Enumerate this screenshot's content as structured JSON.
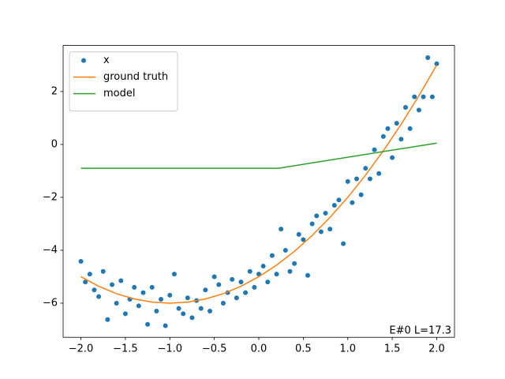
{
  "chart_data": {
    "type": "line",
    "annotation": "E#0 L=17.3",
    "xlim": [
      -2.2,
      2.2
    ],
    "ylim": [
      -7.29,
      3.74
    ],
    "xticks": [
      {
        "value": -2,
        "label": "−2.0"
      },
      {
        "value": -1.5,
        "label": "−1.5"
      },
      {
        "value": -1,
        "label": "−1.0"
      },
      {
        "value": -0.5,
        "label": "−0.5"
      },
      {
        "value": 0,
        "label": "0.0"
      },
      {
        "value": 0.5,
        "label": "0.5"
      },
      {
        "value": 1,
        "label": "1.0"
      },
      {
        "value": 1.5,
        "label": "1.5"
      },
      {
        "value": 2,
        "label": "2.0"
      }
    ],
    "yticks": [
      {
        "value": -6,
        "label": "−6"
      },
      {
        "value": -4,
        "label": "−4"
      },
      {
        "value": -2,
        "label": "−2"
      },
      0,
      2
    ],
    "legend": "upper left",
    "series": [
      {
        "name": "x",
        "type": "scatter",
        "color": "#1f77b4",
        "x": [
          -2.0,
          -1.95,
          -1.9,
          -1.85,
          -1.8,
          -1.75,
          -1.7,
          -1.65,
          -1.6,
          -1.55,
          -1.5,
          -1.45,
          -1.4,
          -1.35,
          -1.3,
          -1.25,
          -1.2,
          -1.15,
          -1.1,
          -1.05,
          -1.0,
          -0.95,
          -0.9,
          -0.85,
          -0.8,
          -0.75,
          -0.7,
          -0.65,
          -0.6,
          -0.55,
          -0.5,
          -0.45,
          -0.4,
          -0.35,
          -0.3,
          -0.25,
          -0.2,
          -0.15,
          -0.1,
          -0.05,
          0.0,
          0.05,
          0.1,
          0.15,
          0.2,
          0.25,
          0.3,
          0.35,
          0.4,
          0.45,
          0.5,
          0.55,
          0.6,
          0.65,
          0.7,
          0.75,
          0.8,
          0.85,
          0.9,
          0.95,
          1.0,
          1.05,
          1.1,
          1.15,
          1.2,
          1.25,
          1.3,
          1.35,
          1.4,
          1.45,
          1.5,
          1.55,
          1.6,
          1.65,
          1.7,
          1.75,
          1.8,
          1.85,
          1.9,
          1.95,
          2.0
        ],
        "values": [
          -4.42,
          -5.2,
          -4.9,
          -5.5,
          -5.75,
          -4.8,
          -6.62,
          -5.3,
          -6.0,
          -5.15,
          -6.4,
          -5.85,
          -5.4,
          -6.1,
          -5.6,
          -6.8,
          -5.4,
          -6.3,
          -5.85,
          -6.85,
          -5.7,
          -4.9,
          -6.2,
          -6.4,
          -5.8,
          -6.55,
          -5.9,
          -6.2,
          -5.5,
          -6.3,
          -5.0,
          -5.3,
          -6.0,
          -5.6,
          -5.1,
          -5.8,
          -5.2,
          -5.6,
          -4.8,
          -5.4,
          -4.9,
          -4.6,
          -5.2,
          -4.2,
          -4.9,
          -3.2,
          -4.0,
          -4.8,
          -4.5,
          -3.4,
          -3.6,
          -4.95,
          -3.0,
          -2.7,
          -3.3,
          -2.6,
          -3.2,
          -2.3,
          -2.1,
          -3.75,
          -1.4,
          -2.2,
          -1.3,
          -1.9,
          -0.9,
          -1.3,
          -0.2,
          -1.1,
          0.3,
          0.6,
          -0.5,
          0.8,
          0.2,
          1.4,
          0.6,
          1.8,
          1.3,
          1.8,
          3.28,
          1.8,
          3.05
        ]
      },
      {
        "name": "ground truth",
        "type": "line",
        "color": "#ff7f0e",
        "x": [
          -2,
          -1.8,
          -1.6,
          -1.4,
          -1.2,
          -1,
          -0.8,
          -0.6,
          -0.4,
          -0.2,
          0,
          0.2,
          0.4,
          0.6,
          0.8,
          1,
          1.2,
          1.4,
          1.6,
          1.8,
          2
        ],
        "values": [
          -5,
          -5.36,
          -5.64,
          -5.84,
          -5.96,
          -6,
          -5.96,
          -5.84,
          -5.64,
          -5.36,
          -5,
          -4.56,
          -4.04,
          -3.44,
          -2.76,
          -2,
          -1.16,
          -0.24,
          0.76,
          1.84,
          3
        ]
      },
      {
        "name": "model",
        "type": "line",
        "color": "#2ca02c",
        "x": [
          -2,
          0.22,
          2
        ],
        "values": [
          -0.9,
          -0.9,
          0.05
        ]
      }
    ]
  }
}
